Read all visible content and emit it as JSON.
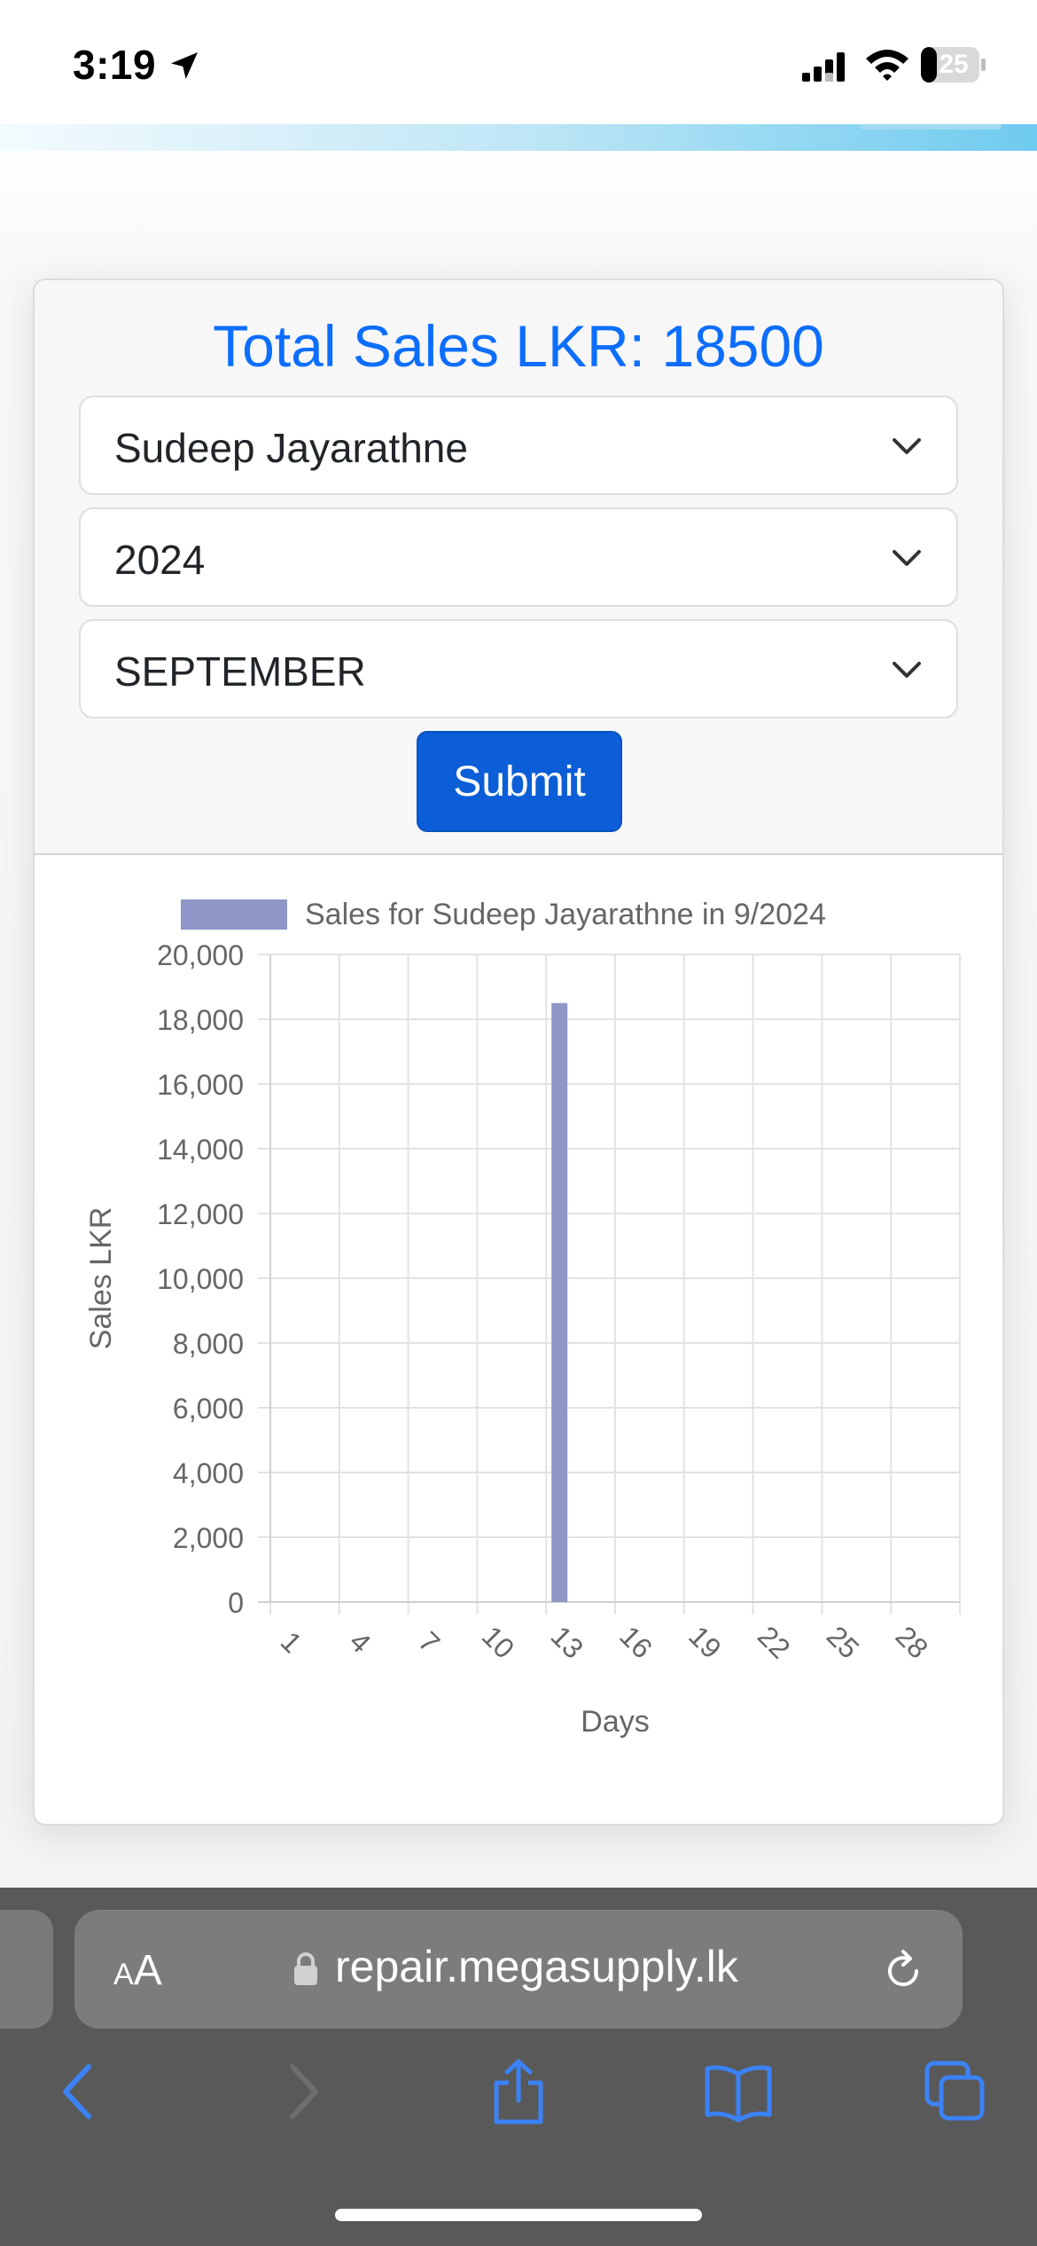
{
  "status_bar": {
    "time": "3:19",
    "battery": "25",
    "icons": [
      "location-arrow-icon",
      "signal-icon",
      "wifi-icon",
      "battery-icon"
    ]
  },
  "report": {
    "total_label": "Total Sales LKR: 18500",
    "salesperson_select": {
      "value": "Sudeep Jayarathne"
    },
    "year_select": {
      "value": "2024"
    },
    "month_select": {
      "value": "SEPTEMBER"
    },
    "submit_label": "Submit"
  },
  "colors": {
    "accent": "#0d6efd",
    "button": "#0b5ed7",
    "bar": "#8f96c8"
  },
  "chart_data": {
    "type": "bar",
    "legend": "Sales for Sudeep Jayarathne in 9/2024",
    "xlabel": "Days",
    "ylabel": "Sales LKR",
    "ylim": [
      0,
      20000
    ],
    "y_ticks": [
      "20,000",
      "18,000",
      "16,000",
      "14,000",
      "12,000",
      "10,000",
      "8,000",
      "6,000",
      "4,000",
      "2,000",
      "0"
    ],
    "x_tick_labels": [
      "1",
      "4",
      "7",
      "10",
      "13",
      "16",
      "19",
      "22",
      "25",
      "28"
    ],
    "categories": [
      "1",
      "2",
      "3",
      "4",
      "5",
      "6",
      "7",
      "8",
      "9",
      "10",
      "11",
      "12",
      "13",
      "14",
      "15",
      "16",
      "17",
      "18",
      "19",
      "20",
      "21",
      "22",
      "23",
      "24",
      "25",
      "26",
      "27",
      "28",
      "29",
      "30"
    ],
    "series": [
      {
        "name": "Sales for Sudeep Jayarathne in 9/2024",
        "values": [
          0,
          0,
          0,
          0,
          0,
          0,
          0,
          0,
          0,
          0,
          0,
          0,
          18500,
          0,
          0,
          0,
          0,
          0,
          0,
          0,
          0,
          0,
          0,
          0,
          0,
          0,
          0,
          0,
          0,
          0
        ]
      }
    ],
    "grid": true,
    "legend_position": "top"
  },
  "browser": {
    "text_size_label": "AA",
    "url": "repair.megasupply.lk"
  }
}
